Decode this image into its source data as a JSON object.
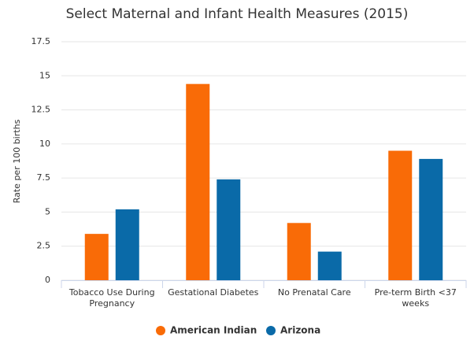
{
  "chart_data": {
    "type": "bar",
    "title": "Select Maternal and Infant Health Measures (2015)",
    "y_label": "Rate per 100 births",
    "categories": [
      "Tobacco Use During Pregnancy",
      "Gestational Diabetes",
      "No Prenatal Care",
      "Pre-term Birth <37 weeks"
    ],
    "series": [
      {
        "name": "American Indian",
        "color": "#f96b07",
        "values": [
          3.4,
          14.4,
          4.2,
          9.5
        ]
      },
      {
        "name": "Arizona",
        "color": "#0a6aa8",
        "values": [
          5.2,
          7.4,
          2.1,
          8.9
        ]
      }
    ],
    "ylim": [
      0,
      17.5
    ],
    "yticks": [
      0,
      2.5,
      5,
      7.5,
      10,
      12.5,
      15,
      17.5
    ],
    "grid": true
  }
}
